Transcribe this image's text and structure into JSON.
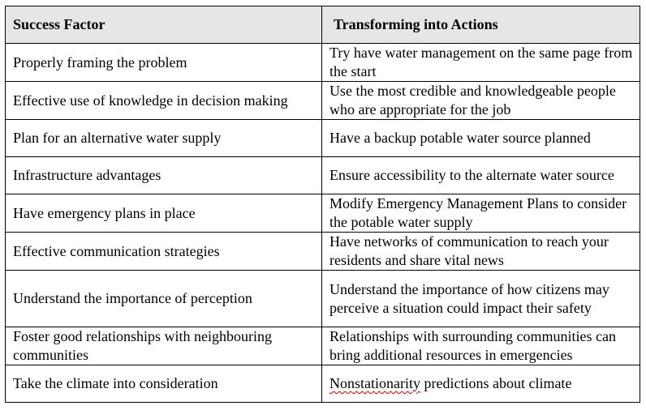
{
  "table": {
    "headers": [
      "Success Factor",
      "Transforming into Actions"
    ],
    "rows": [
      {
        "factor": "Properly framing the problem",
        "action": "Try have water management on the same page from the start"
      },
      {
        "factor": "Effective use of knowledge in decision making",
        "action": "Use the most credible and knowledgeable people who are appropriate for the job"
      },
      {
        "factor": "Plan for an alternative water supply",
        "action": "Have a backup potable water source planned"
      },
      {
        "factor": "Infrastructure advantages",
        "action": "Ensure accessibility to the alternate water source"
      },
      {
        "factor": "Have emergency plans in place",
        "action": "Modify Emergency Management Plans to consider the potable water supply"
      },
      {
        "factor": "Effective communication strategies",
        "action": "Have networks of communication to reach your residents and share vital news"
      },
      {
        "factor": "Understand the importance of perception",
        "action": "Understand the importance of how citizens may perceive a situation could impact their safety"
      },
      {
        "factor": "Foster good relationships with neighbouring communities",
        "action": "Relationships with surrounding communities can bring additional resources in emergencies"
      },
      {
        "factor": "Take the climate into consideration",
        "action_flagged_word": "Nonstationarity",
        "action_rest": " predictions about climate"
      }
    ]
  },
  "colors": {
    "header_background": "#e7e6e6",
    "border": "#000000",
    "spellcheck_underline": "#d00000"
  }
}
